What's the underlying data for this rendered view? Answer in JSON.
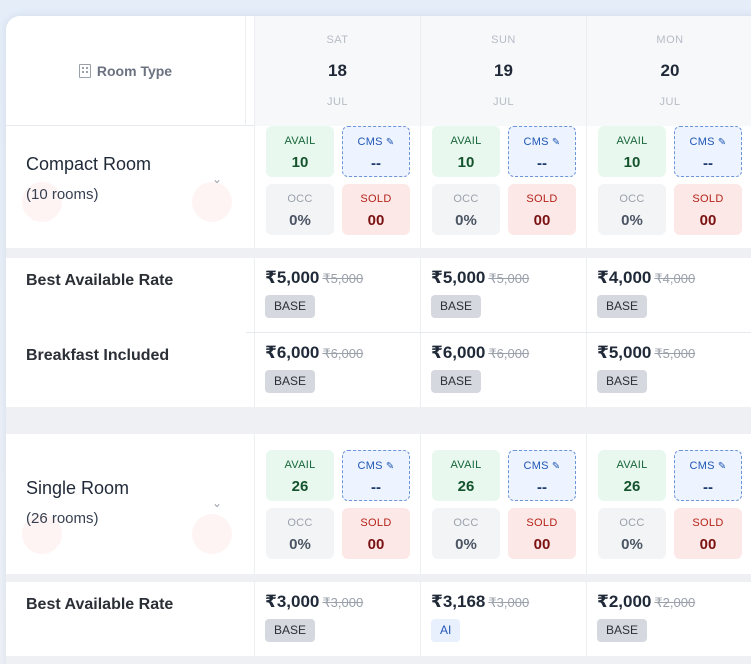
{
  "header": {
    "room_type_label": "Room Type",
    "days": [
      {
        "dow": "SAT",
        "date": "18",
        "month": "JUL"
      },
      {
        "dow": "SUN",
        "date": "19",
        "month": "JUL"
      },
      {
        "dow": "MON",
        "date": "20",
        "month": "JUL"
      }
    ]
  },
  "tile_labels": {
    "avail": "AVAIL",
    "cms": "CMS",
    "occ": "OCC",
    "sold": "SOLD"
  },
  "rooms": [
    {
      "name": "Compact Room",
      "count": "(10 rooms)",
      "days": [
        {
          "avail": "10",
          "cms": "--",
          "occ": "0%",
          "sold": "00"
        },
        {
          "avail": "10",
          "cms": "--",
          "occ": "0%",
          "sold": "00"
        },
        {
          "avail": "10",
          "cms": "--",
          "occ": "0%",
          "sold": "00"
        }
      ],
      "rates": [
        {
          "name": "Best Available Rate",
          "cells": [
            {
              "price": "₹5,000",
              "strike": "₹5,000",
              "badge": "BASE"
            },
            {
              "price": "₹5,000",
              "strike": "₹5,000",
              "badge": "BASE"
            },
            {
              "price": "₹4,000",
              "strike": "₹4,000",
              "badge": "BASE"
            }
          ]
        },
        {
          "name": "Breakfast Included",
          "cells": [
            {
              "price": "₹6,000",
              "strike": "₹6,000",
              "badge": "BASE"
            },
            {
              "price": "₹6,000",
              "strike": "₹6,000",
              "badge": "BASE"
            },
            {
              "price": "₹5,000",
              "strike": "₹5,000",
              "badge": "BASE"
            }
          ]
        }
      ]
    },
    {
      "name": "Single Room",
      "count": "(26 rooms)",
      "days": [
        {
          "avail": "26",
          "cms": "--",
          "occ": "0%",
          "sold": "00"
        },
        {
          "avail": "26",
          "cms": "--",
          "occ": "0%",
          "sold": "00"
        },
        {
          "avail": "26",
          "cms": "--",
          "occ": "0%",
          "sold": "00"
        }
      ],
      "rates": [
        {
          "name": "Best Available Rate",
          "cells": [
            {
              "price": "₹3,000",
              "strike": "₹3,000",
              "badge": "BASE"
            },
            {
              "price": "₹3,168",
              "strike": "₹3,000",
              "badge": "AI"
            },
            {
              "price": "₹2,000",
              "strike": "₹2,000",
              "badge": "BASE"
            }
          ]
        }
      ]
    }
  ]
}
